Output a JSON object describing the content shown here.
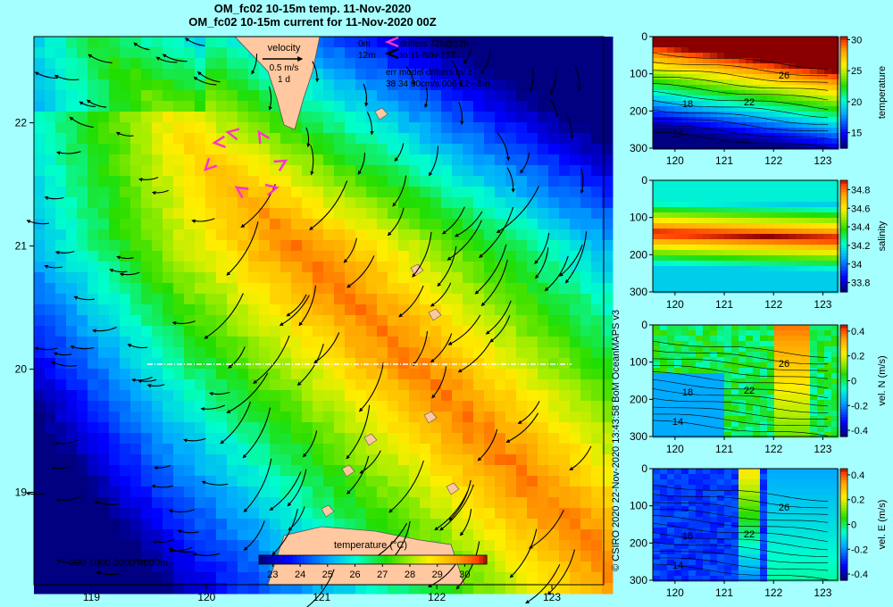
{
  "titles": {
    "line1": "OM_fc02 10-15m temp. 11-Nov-2020",
    "line2": "OM_fc02 10-15m current for 11-Nov-2020 00Z"
  },
  "credit": "© CSIRO 2020   22-Nov-2020 13:43:58 BoM OceanMAPS v3",
  "legend": {
    "velocity_title": "velocity",
    "velocity_scale": "0.5 m/s",
    "velocity_time": "1 d",
    "drifter_depth_1": "0m",
    "drifter_depth_2": "12m",
    "drifter_label_1": "drifters 72h@12h",
    "drifter_label_2": "to 11-Nov 12Z",
    "err_line_1": "err model drifters nv z",
    "err_line_2": "38 34 60cm/s 006 12+-5m"
  },
  "bathymetry_label": "200  1000  2000  4000m",
  "colors": {
    "background": "#a5ffff",
    "drifter": "#ff33cc",
    "land": "#ffc8a0"
  },
  "chart_data": [
    {
      "type": "heatmap",
      "panel": "map",
      "title": "OM_fc02 10-15m temp. 11-Nov-2020",
      "x_ticks": [
        119,
        120,
        121,
        122,
        123
      ],
      "y_ticks": [
        19,
        20,
        21,
        22
      ],
      "xlim": [
        118.5,
        123.45
      ],
      "ylim": [
        18.25,
        22.7
      ],
      "colorbar": {
        "label": "temperature (°C)",
        "ticks": [
          23,
          24,
          25,
          26,
          27,
          28,
          29,
          30
        ],
        "range": [
          22.5,
          30.8
        ],
        "orientation": "horizontal"
      },
      "section_line_lat": 20
    },
    {
      "type": "heatmap",
      "panel": "section",
      "variable": "temperature",
      "x_ticks": [
        120,
        121,
        122,
        123
      ],
      "y_ticks": [
        0,
        100,
        200,
        300
      ],
      "ylim": [
        300,
        0
      ],
      "colorbar_ticks": [
        "15",
        "20",
        "25",
        "30"
      ],
      "colorbar_range": [
        12.5,
        30.5
      ],
      "contour_labels": [
        "26",
        "22",
        "18",
        "14"
      ]
    },
    {
      "type": "heatmap",
      "panel": "section",
      "variable": "salinity",
      "x_ticks": [
        120,
        121,
        122,
        123
      ],
      "y_ticks": [
        0,
        100,
        200,
        300
      ],
      "ylim": [
        300,
        0
      ],
      "colorbar_ticks": [
        "33.8",
        "34",
        "34.2",
        "34.4",
        "34.6",
        "34.8"
      ],
      "colorbar_range": [
        33.7,
        34.9
      ]
    },
    {
      "type": "heatmap",
      "panel": "section",
      "variable": "vel. N (m/s)",
      "x_ticks": [
        120,
        121,
        122,
        123
      ],
      "y_ticks": [
        0,
        100,
        200,
        300
      ],
      "ylim": [
        300,
        0
      ],
      "colorbar_ticks": [
        "-0.4",
        "-0.2",
        "0",
        "0.2",
        "0.4"
      ],
      "colorbar_range": [
        -0.45,
        0.45
      ],
      "contour_labels": [
        "26",
        "22",
        "18",
        "14"
      ]
    },
    {
      "type": "heatmap",
      "panel": "section",
      "variable": "vel. E (m/s)",
      "x_ticks": [
        120,
        121,
        122,
        123
      ],
      "y_ticks": [
        0,
        100,
        200,
        300
      ],
      "ylim": [
        300,
        0
      ],
      "colorbar_ticks": [
        "-0.4",
        "-0.2",
        "0",
        "0.2",
        "0.4"
      ],
      "colorbar_range": [
        -0.45,
        0.45
      ],
      "contour_labels": [
        "26",
        "22",
        "18",
        "14"
      ]
    }
  ]
}
